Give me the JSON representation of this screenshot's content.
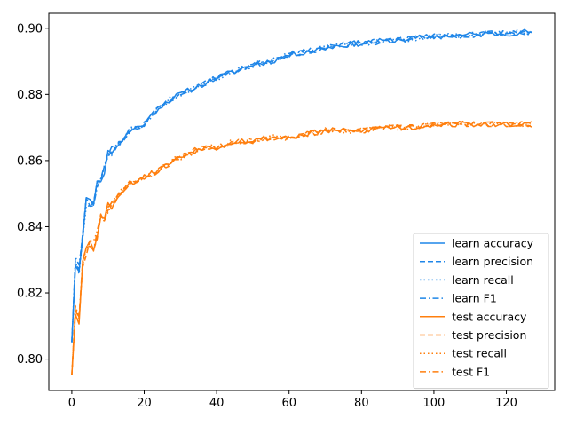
{
  "chart_data": {
    "type": "line",
    "title": "",
    "xlabel": "",
    "ylabel": "",
    "xlim": [
      -6.35,
      133.35
    ],
    "ylim": [
      0.7905,
      0.9045
    ],
    "x_ticks": [
      0,
      20,
      40,
      60,
      80,
      100,
      120
    ],
    "y_ticks": [
      0.8,
      0.82,
      0.84,
      0.86,
      0.88,
      0.9
    ],
    "x_tick_labels": [
      "0",
      "20",
      "40",
      "60",
      "80",
      "100",
      "120"
    ],
    "y_tick_labels": [
      "0.80",
      "0.82",
      "0.84",
      "0.86",
      "0.88",
      "0.90"
    ],
    "grid": false,
    "legend_position": "lower-right",
    "colors": {
      "learn": "#1f86e8",
      "test": "#ff7f0e"
    },
    "anchors": {
      "learn": [
        [
          0,
          0.806
        ],
        [
          1,
          0.829
        ],
        [
          2,
          0.827
        ],
        [
          3,
          0.838
        ],
        [
          4,
          0.848
        ],
        [
          5,
          0.847
        ],
        [
          6,
          0.848
        ],
        [
          7,
          0.853
        ],
        [
          8,
          0.855
        ],
        [
          9,
          0.857
        ],
        [
          10,
          0.862
        ],
        [
          12,
          0.864
        ],
        [
          14,
          0.866
        ],
        [
          16,
          0.869
        ],
        [
          20,
          0.871
        ],
        [
          24,
          0.876
        ],
        [
          28,
          0.879
        ],
        [
          32,
          0.881
        ],
        [
          36,
          0.883
        ],
        [
          40,
          0.885
        ],
        [
          45,
          0.887
        ],
        [
          50,
          0.889
        ],
        [
          55,
          0.89
        ],
        [
          60,
          0.892
        ],
        [
          65,
          0.893
        ],
        [
          70,
          0.894
        ],
        [
          75,
          0.895
        ],
        [
          80,
          0.8955
        ],
        [
          85,
          0.896
        ],
        [
          90,
          0.8965
        ],
        [
          95,
          0.897
        ],
        [
          100,
          0.8975
        ],
        [
          110,
          0.898
        ],
        [
          120,
          0.8985
        ],
        [
          127,
          0.899
        ]
      ],
      "test": [
        [
          0,
          0.796
        ],
        [
          1,
          0.815
        ],
        [
          2,
          0.812
        ],
        [
          3,
          0.829
        ],
        [
          4,
          0.833
        ],
        [
          5,
          0.835
        ],
        [
          6,
          0.834
        ],
        [
          7,
          0.838
        ],
        [
          8,
          0.843
        ],
        [
          9,
          0.842
        ],
        [
          10,
          0.846
        ],
        [
          12,
          0.848
        ],
        [
          14,
          0.851
        ],
        [
          16,
          0.853
        ],
        [
          20,
          0.855
        ],
        [
          24,
          0.857
        ],
        [
          28,
          0.86
        ],
        [
          32,
          0.862
        ],
        [
          36,
          0.864
        ],
        [
          40,
          0.864
        ],
        [
          45,
          0.866
        ],
        [
          50,
          0.866
        ],
        [
          55,
          0.867
        ],
        [
          60,
          0.867
        ],
        [
          65,
          0.868
        ],
        [
          70,
          0.869
        ],
        [
          75,
          0.869
        ],
        [
          80,
          0.869
        ],
        [
          85,
          0.87
        ],
        [
          90,
          0.87
        ],
        [
          95,
          0.87
        ],
        [
          100,
          0.871
        ],
        [
          110,
          0.871
        ],
        [
          120,
          0.871
        ],
        [
          127,
          0.871
        ]
      ]
    },
    "series": [
      {
        "name": "learn accuracy",
        "group": "learn",
        "style": "solid",
        "seed": 11
      },
      {
        "name": "learn precision",
        "group": "learn",
        "style": "dashed",
        "seed": 23
      },
      {
        "name": "learn recall",
        "group": "learn",
        "style": "dotted",
        "seed": 37
      },
      {
        "name": "learn F1",
        "group": "learn",
        "style": "dashdot",
        "seed": 41
      },
      {
        "name": "test accuracy",
        "group": "test",
        "style": "solid",
        "seed": 53
      },
      {
        "name": "test precision",
        "group": "test",
        "style": "dashed",
        "seed": 67
      },
      {
        "name": "test recall",
        "group": "test",
        "style": "dotted",
        "seed": 71
      },
      {
        "name": "test F1",
        "group": "test",
        "style": "dashdot",
        "seed": 83
      }
    ]
  }
}
